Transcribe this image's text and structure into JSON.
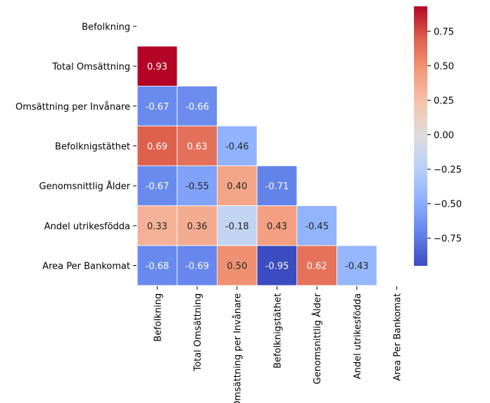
{
  "chart_data": {
    "type": "heatmap",
    "variables": [
      "Befolkning",
      "Total Omsättning",
      "Omsättning per Invånare",
      "Befolknigstäthet",
      "Genomsnittlig Ålder",
      "Andel utrikesfödda",
      "Area Per Bankomat"
    ],
    "values": [
      [
        null,
        null,
        null,
        null,
        null,
        null,
        null
      ],
      [
        0.93,
        null,
        null,
        null,
        null,
        null,
        null
      ],
      [
        -0.67,
        -0.66,
        null,
        null,
        null,
        null,
        null
      ],
      [
        0.69,
        0.63,
        -0.46,
        null,
        null,
        null,
        null
      ],
      [
        -0.67,
        -0.55,
        0.4,
        -0.71,
        null,
        null,
        null
      ],
      [
        0.33,
        0.36,
        -0.18,
        0.43,
        -0.45,
        null,
        null
      ],
      [
        -0.68,
        -0.69,
        0.5,
        -0.95,
        0.62,
        -0.43,
        null
      ]
    ],
    "value_labels": [
      [
        null,
        null,
        null,
        null,
        null,
        null,
        null
      ],
      [
        "0.93",
        null,
        null,
        null,
        null,
        null,
        null
      ],
      [
        "-0.67",
        "-0.66",
        null,
        null,
        null,
        null,
        null
      ],
      [
        "0.69",
        "0.63",
        "-0.46",
        null,
        null,
        null,
        null
      ],
      [
        "-0.67",
        "-0.55",
        "0.40",
        "-0.71",
        null,
        null,
        null
      ],
      [
        "0.33",
        "0.36",
        "-0.18",
        "0.43",
        "-0.45",
        null,
        null
      ],
      [
        "-0.68",
        "-0.69",
        "0.50",
        "-0.95",
        "0.62",
        "-0.43",
        null
      ]
    ],
    "mask": "upper-triangle-and-diagonal",
    "colormap": "coolwarm",
    "color_range": [
      -0.95,
      0.93
    ],
    "colorbar": {
      "position": "right",
      "ticks": [
        0.75,
        0.5,
        0.25,
        0.0,
        -0.25,
        -0.5,
        -0.75
      ],
      "tick_labels": [
        "0.75",
        "0.50",
        "0.25",
        "0.00",
        "−0.25",
        "−0.50",
        "−0.75"
      ]
    },
    "title": "",
    "xlabel": "",
    "ylabel": "",
    "grid": false
  }
}
